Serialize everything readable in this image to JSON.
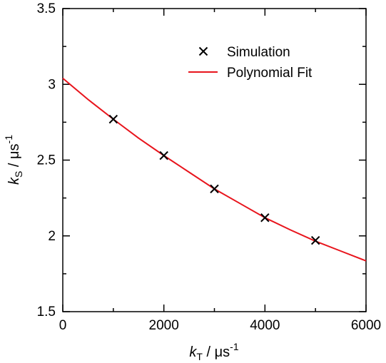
{
  "chart_data": {
    "type": "scatter",
    "title": "",
    "xlabel": {
      "main": "k",
      "sub": "T",
      "unit": " / μs",
      "sup": "-1"
    },
    "ylabel": {
      "main": "k",
      "sub": "S",
      "unit": " / μs",
      "sup": "-1"
    },
    "xlim": [
      0,
      6000
    ],
    "ylim": [
      1.5,
      3.5
    ],
    "xticks": [
      0,
      2000,
      4000,
      6000
    ],
    "yticks": [
      1.5,
      2,
      2.5,
      3,
      3.5
    ],
    "x_tick_labels": [
      "0",
      "2000",
      "4000",
      "6000"
    ],
    "y_tick_labels": [
      "1.5",
      "2",
      "2.5",
      "3",
      "3.5"
    ],
    "grid": false,
    "legend_position": "top-right",
    "series": [
      {
        "name": "Simulation",
        "marker": "x",
        "color": "#000000",
        "x": [
          1000,
          2000,
          3000,
          4000,
          5000
        ],
        "y": [
          2.77,
          2.53,
          2.31,
          2.12,
          1.97
        ]
      },
      {
        "name": "Polynomial Fit",
        "kind": "line",
        "color": "#e8141c",
        "x": [
          0,
          500,
          1000,
          1500,
          2000,
          2500,
          3000,
          3500,
          4000,
          4500,
          5000,
          5500,
          6000
        ],
        "y": [
          3.04,
          2.9,
          2.77,
          2.645,
          2.53,
          2.42,
          2.31,
          2.215,
          2.12,
          2.04,
          1.965,
          1.9,
          1.835
        ]
      }
    ]
  }
}
